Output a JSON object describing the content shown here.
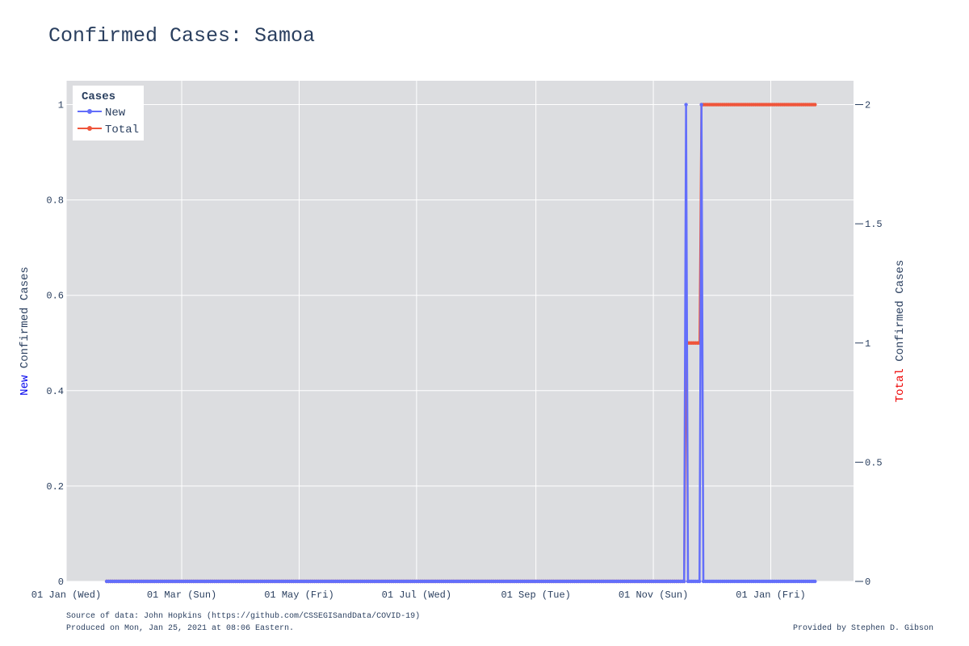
{
  "chart_data": {
    "type": "line",
    "title": "Confirmed Cases: Samoa",
    "y_left_label": {
      "prefix": "New",
      "rest": " Confirmed Cases"
    },
    "y_right_label": {
      "prefix": "Total",
      "rest": " Confirmed Cases"
    },
    "legend": {
      "title": "Cases",
      "placement": "top-left"
    },
    "x_ticks": [
      "01 Jan (Wed)",
      "01 Mar (Sun)",
      "01 May (Fri)",
      "01 Jul (Wed)",
      "01 Sep (Tue)",
      "01 Nov (Sun)",
      "01 Jan (Fri)"
    ],
    "x_tick_dates": [
      "2020-01-01",
      "2020-03-01",
      "2020-05-01",
      "2020-07-01",
      "2020-09-01",
      "2020-11-01",
      "2021-01-01"
    ],
    "xlim": [
      "2020-01-01",
      "2021-02-13"
    ],
    "y_left_ticks": [
      "0",
      "0.2",
      "0.4",
      "0.6",
      "0.8",
      "1"
    ],
    "y_left_lim": [
      0,
      1.05
    ],
    "y_right_ticks": [
      "0",
      "0.5",
      "1",
      "1.5",
      "2"
    ],
    "y_right_lim": [
      0,
      2.1
    ],
    "grid": true,
    "series": [
      {
        "name": "New",
        "color": "#636efa",
        "axis": "left",
        "x": [
          "2020-01-22",
          "2020-11-17",
          "2020-11-18",
          "2020-11-19",
          "2020-11-25",
          "2020-11-26",
          "2020-11-27",
          "2021-01-24"
        ],
        "y": [
          0,
          0,
          1,
          0,
          0,
          1,
          0,
          0
        ]
      },
      {
        "name": "Total",
        "color": "#ef553b",
        "axis": "right",
        "x": [
          "2020-01-22",
          "2020-11-17",
          "2020-11-18",
          "2020-11-25",
          "2020-11-26",
          "2021-01-24"
        ],
        "y": [
          0,
          0,
          1,
          1,
          2,
          2
        ]
      }
    ]
  },
  "footer": {
    "source": "Source of data: John Hopkins (https://github.com/CSSEGISandData/COVID-19)",
    "produced": "Produced on Mon, Jan 25, 2021 at 08:06 Eastern.",
    "credit": "Provided by Stephen D. Gibson"
  }
}
